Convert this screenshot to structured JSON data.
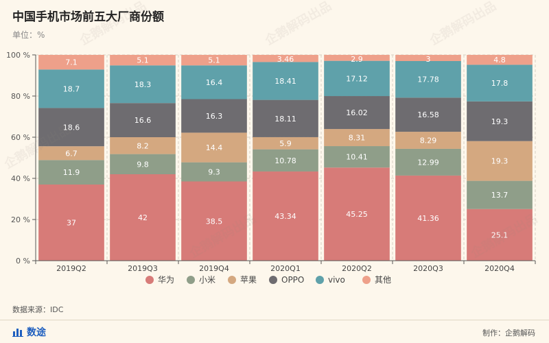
{
  "title": "中国手机市场前五大厂商份额",
  "unit": "单位：%",
  "source": "数据来源：IDC",
  "brand": "数途",
  "maker": "制作：企鹅解码",
  "watermark": "企鹅解码出品",
  "chart_data": {
    "type": "bar",
    "stacked": true,
    "categories": [
      "2019Q2",
      "2019Q3",
      "2019Q4",
      "2020Q1",
      "2020Q2",
      "2020Q3",
      "2020Q4"
    ],
    "ylim": [
      0,
      100
    ],
    "yticks": [
      "0 %",
      "20 %",
      "40 %",
      "60 %",
      "80 %",
      "100 %"
    ],
    "legend_position": "bottom",
    "series": [
      {
        "name": "华为",
        "color": "#d77b78",
        "values": [
          37,
          42,
          38.5,
          43.34,
          45.25,
          41.36,
          25.1
        ]
      },
      {
        "name": "小米",
        "color": "#8f9e89",
        "values": [
          11.9,
          9.8,
          9.3,
          10.78,
          10.41,
          12.99,
          13.7
        ]
      },
      {
        "name": "苹果",
        "color": "#d4a880",
        "values": [
          6.7,
          8.2,
          14.4,
          5.9,
          8.31,
          8.29,
          19.3
        ]
      },
      {
        "name": "OPPO",
        "color": "#6e6c70",
        "values": [
          18.6,
          16.6,
          16.3,
          18.11,
          16.02,
          16.58,
          19.3
        ]
      },
      {
        "name": "vivo",
        "color": "#5fa1aa",
        "values": [
          18.7,
          18.3,
          16.4,
          18.41,
          17.12,
          17.78,
          17.8
        ]
      },
      {
        "name": "其他",
        "color": "#eea08a",
        "values": [
          7.1,
          5.1,
          5.1,
          3.46,
          2.9,
          3,
          4.8
        ]
      }
    ]
  }
}
